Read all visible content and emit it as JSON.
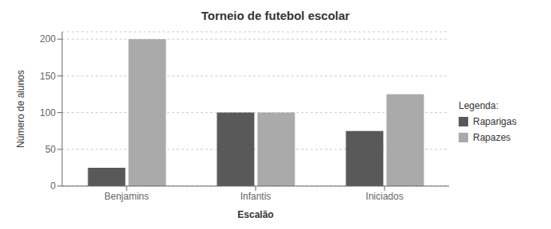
{
  "chart_data": {
    "type": "bar",
    "title": "Torneio de futebol escolar",
    "x_label": "Escalão",
    "y_label": "Número de alunos",
    "categories": [
      "Benjamins",
      "Infantis",
      "Iniciados"
    ],
    "series": [
      {
        "name": "Raparigas",
        "color": "#595959",
        "values": [
          25,
          100,
          75
        ]
      },
      {
        "name": "Rapazes",
        "color": "#aaaaaa",
        "values": [
          200,
          100,
          125
        ]
      }
    ],
    "ylim": [
      0,
      210
    ],
    "yticks": [
      0,
      50,
      100,
      150,
      200
    ],
    "grid": true,
    "legend": "right",
    "legend_title": "Legenda:"
  }
}
